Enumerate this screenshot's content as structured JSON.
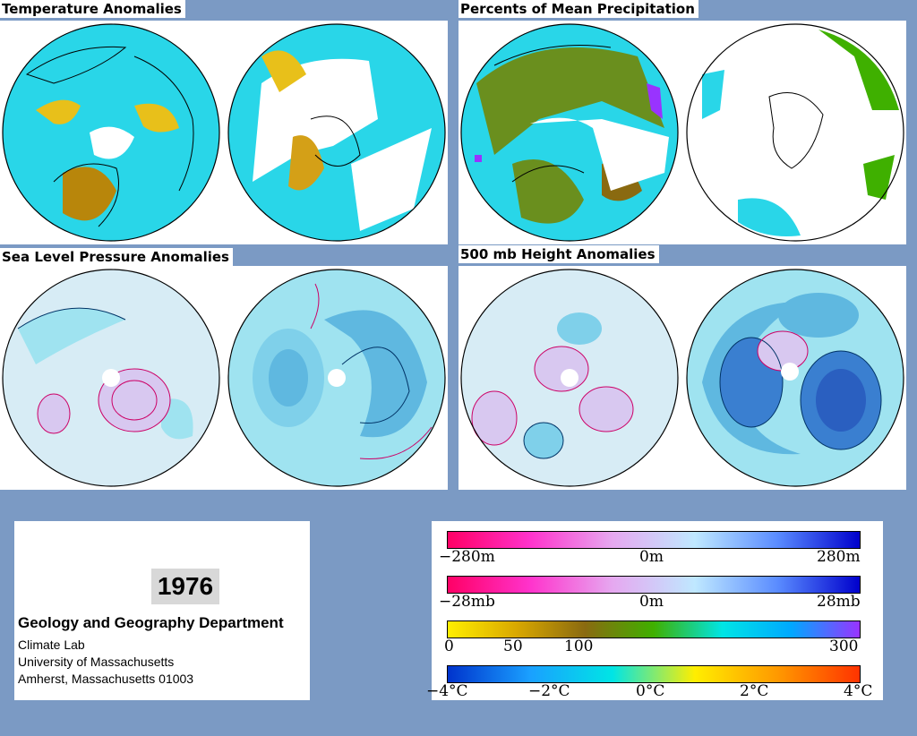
{
  "panels": {
    "temperature": {
      "title": "Temperature Anomalies"
    },
    "precipitation": {
      "title": "Percents of Mean Precipitation"
    },
    "slp": {
      "title": "Sea Level Pressure Anomalies"
    },
    "height500": {
      "title": "500 mb Height Anomalies"
    }
  },
  "info": {
    "year": "1976",
    "department": "Geology and Geography Department",
    "lines": [
      "Climate Lab",
      "University of Massachusetts",
      "Amherst, Massachusetts 01003"
    ]
  },
  "legend": {
    "height": {
      "labels": [
        "−280m",
        "0m",
        "280m"
      ],
      "colors": [
        "#ff0066",
        "#ff33cc",
        "#e6a8f0",
        "#bfe8ff",
        "#5a8cff",
        "#0000cc"
      ]
    },
    "pressure": {
      "labels": [
        "−28mb",
        "0m",
        "28mb"
      ],
      "colors": [
        "#ff0066",
        "#ff33cc",
        "#e6a8f0",
        "#bfe8ff",
        "#5a8cff",
        "#0000cc"
      ]
    },
    "precip": {
      "labels": [
        "0",
        "50",
        "100",
        "300"
      ],
      "colors": [
        "#ffee00",
        "#d9a800",
        "#8a6a10",
        "#3fb000",
        "#00e5e5",
        "#00a8ff",
        "#9933ff"
      ]
    },
    "temp": {
      "labels": [
        "−4°C",
        "−2°C",
        "0°C",
        "2°C",
        "4°C"
      ],
      "colors": [
        "#0033cc",
        "#1aa0ff",
        "#00e5e5",
        "#ffee00",
        "#ff9900",
        "#ff3300"
      ]
    }
  },
  "colors": {
    "background": "#7b9ac4",
    "ocean_cyan": "#29d6e8",
    "warm": "#e8c01a",
    "dry": "#6a8f1e",
    "positive_contour": "#cc0066",
    "negative_contour": "#003366"
  }
}
